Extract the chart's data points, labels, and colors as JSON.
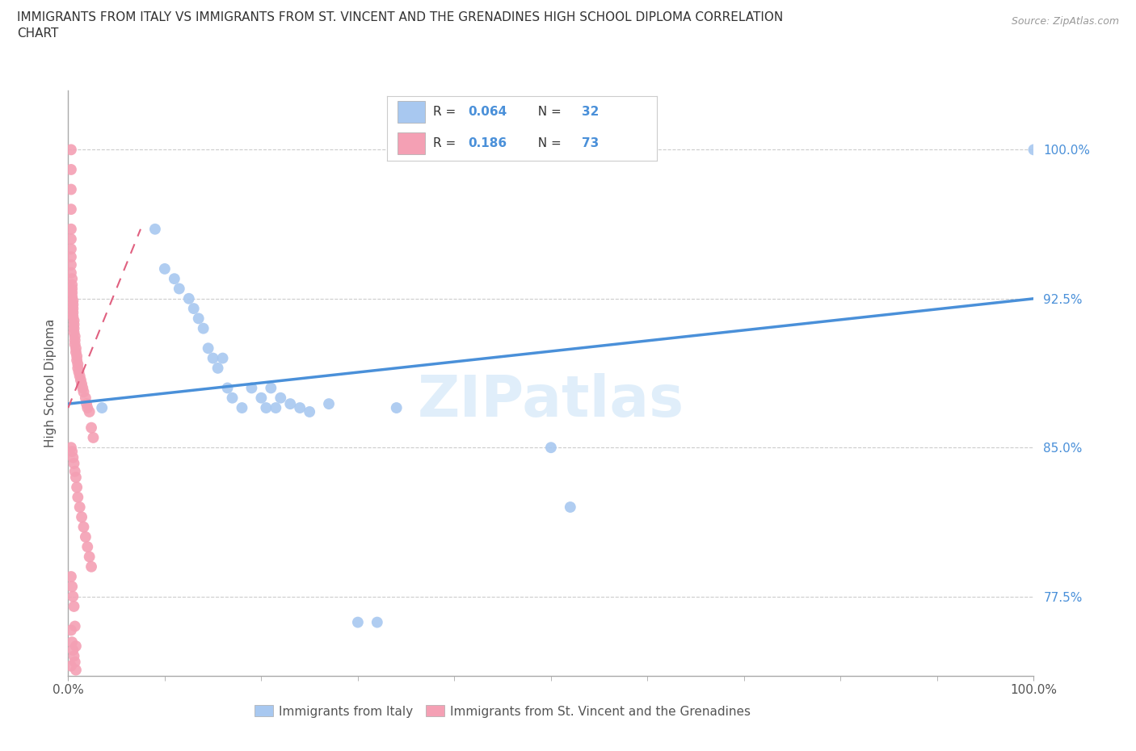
{
  "title_line1": "IMMIGRANTS FROM ITALY VS IMMIGRANTS FROM ST. VINCENT AND THE GRENADINES HIGH SCHOOL DIPLOMA CORRELATION",
  "title_line2": "CHART",
  "source": "Source: ZipAtlas.com",
  "ylabel": "High School Diploma",
  "xlim": [
    0.0,
    1.0
  ],
  "ylim": [
    0.735,
    1.03
  ],
  "yticks": [
    0.775,
    0.85,
    0.925,
    1.0
  ],
  "ytick_labels": [
    "77.5%",
    "85.0%",
    "92.5%",
    "100.0%"
  ],
  "color_italy": "#a8c8f0",
  "color_svg": "#f4a0b4",
  "trendline_italy_color": "#4a90d9",
  "trendline_svg_color": "#e06080",
  "watermark": "ZIPatlas",
  "background_color": "#ffffff",
  "italy_x": [
    0.035,
    0.09,
    0.1,
    0.11,
    0.115,
    0.125,
    0.13,
    0.135,
    0.14,
    0.145,
    0.15,
    0.155,
    0.16,
    0.165,
    0.17,
    0.18,
    0.19,
    0.2,
    0.205,
    0.21,
    0.215,
    0.22,
    0.23,
    0.24,
    0.25,
    0.27,
    0.3,
    0.32,
    0.34,
    0.5,
    0.52,
    1.0
  ],
  "italy_y": [
    0.87,
    0.96,
    0.94,
    0.935,
    0.93,
    0.925,
    0.92,
    0.915,
    0.91,
    0.9,
    0.895,
    0.89,
    0.895,
    0.88,
    0.875,
    0.87,
    0.88,
    0.875,
    0.87,
    0.88,
    0.87,
    0.875,
    0.872,
    0.87,
    0.868,
    0.872,
    0.762,
    0.762,
    0.87,
    0.85,
    0.82,
    1.0
  ],
  "svg_x": [
    0.003,
    0.003,
    0.003,
    0.003,
    0.003,
    0.003,
    0.003,
    0.003,
    0.003,
    0.003,
    0.004,
    0.004,
    0.004,
    0.004,
    0.004,
    0.005,
    0.005,
    0.005,
    0.005,
    0.005,
    0.006,
    0.006,
    0.006,
    0.006,
    0.007,
    0.007,
    0.007,
    0.008,
    0.008,
    0.009,
    0.009,
    0.01,
    0.01,
    0.011,
    0.012,
    0.013,
    0.014,
    0.015,
    0.016,
    0.018,
    0.019,
    0.02,
    0.022,
    0.024,
    0.026,
    0.003,
    0.004,
    0.005,
    0.006,
    0.007,
    0.008,
    0.009,
    0.01,
    0.012,
    0.014,
    0.016,
    0.018,
    0.02,
    0.022,
    0.024,
    0.003,
    0.004,
    0.005,
    0.006,
    0.007,
    0.008,
    0.003,
    0.003,
    0.004,
    0.005,
    0.006,
    0.007,
    0.008
  ],
  "svg_y": [
    1.0,
    0.99,
    0.98,
    0.97,
    0.96,
    0.955,
    0.95,
    0.946,
    0.942,
    0.938,
    0.935,
    0.932,
    0.93,
    0.928,
    0.926,
    0.924,
    0.922,
    0.92,
    0.918,
    0.916,
    0.914,
    0.912,
    0.91,
    0.908,
    0.906,
    0.904,
    0.902,
    0.9,
    0.898,
    0.896,
    0.894,
    0.892,
    0.89,
    0.888,
    0.886,
    0.884,
    0.882,
    0.88,
    0.878,
    0.875,
    0.872,
    0.87,
    0.868,
    0.86,
    0.855,
    0.85,
    0.848,
    0.845,
    0.842,
    0.838,
    0.835,
    0.83,
    0.825,
    0.82,
    0.815,
    0.81,
    0.805,
    0.8,
    0.795,
    0.79,
    0.785,
    0.78,
    0.775,
    0.77,
    0.76,
    0.75,
    0.74,
    0.758,
    0.752,
    0.748,
    0.745,
    0.742,
    0.738
  ],
  "italy_trend_x": [
    0.0,
    1.0
  ],
  "italy_trend_y": [
    0.872,
    0.925
  ],
  "svg_trend_x": [
    0.0,
    0.075
  ],
  "svg_trend_y": [
    0.87,
    0.96
  ]
}
